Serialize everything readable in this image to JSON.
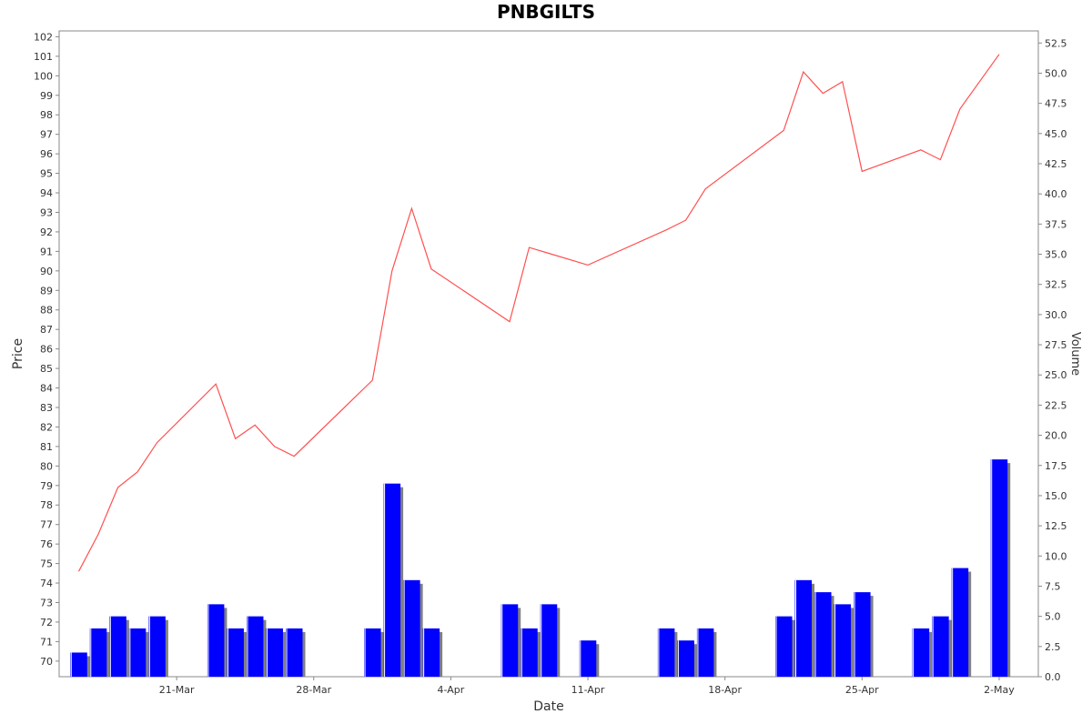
{
  "chart_data": {
    "type": "line",
    "title": "PNBGILTS",
    "xlabel": "Date",
    "ylabel": "Price",
    "y2label": "Volume",
    "x_tick_labels": [
      {
        "label": "21-Mar",
        "date": "2022-03-21"
      },
      {
        "label": "28-Mar",
        "date": "2022-03-28"
      },
      {
        "label": "4-Apr",
        "date": "2022-04-04"
      },
      {
        "label": "11-Apr",
        "date": "2022-04-11"
      },
      {
        "label": "18-Apr",
        "date": "2022-04-18"
      },
      {
        "label": "25-Apr",
        "date": "2022-04-25"
      },
      {
        "label": "2-May",
        "date": "2022-05-02"
      }
    ],
    "xlim": [
      "2022-03-15",
      "2022-05-04"
    ],
    "ylim": [
      69.2,
      102.3
    ],
    "y_ticks": [
      70,
      71,
      72,
      73,
      74,
      75,
      76,
      77,
      78,
      79,
      80,
      81,
      82,
      83,
      84,
      85,
      86,
      87,
      88,
      89,
      90,
      91,
      92,
      93,
      94,
      95,
      96,
      97,
      98,
      99,
      100,
      101,
      102
    ],
    "y2lim": [
      0,
      53.5
    ],
    "y2_ticks": [
      "0.0",
      "2.5",
      "5.0",
      "7.5",
      "10.0",
      "12.5",
      "15.0",
      "17.5",
      "20.0",
      "22.5",
      "25.0",
      "27.5",
      "30.0",
      "32.5",
      "35.0",
      "37.5",
      "40.0",
      "42.5",
      "45.0",
      "47.5",
      "50.0",
      "52.5"
    ],
    "grid": false,
    "series": [
      {
        "kind": "line",
        "color": "#ff5050",
        "points": [
          {
            "date": "2022-03-16",
            "value": 74.6
          },
          {
            "date": "2022-03-17",
            "value": 76.5
          },
          {
            "date": "2022-03-18",
            "value": 78.9
          },
          {
            "date": "2022-03-19",
            "value": 79.7
          },
          {
            "date": "2022-03-20",
            "value": 81.2
          },
          {
            "date": "2022-03-23",
            "value": 84.2
          },
          {
            "date": "2022-03-24",
            "value": 81.4
          },
          {
            "date": "2022-03-25",
            "value": 82.1
          },
          {
            "date": "2022-03-26",
            "value": 81.0
          },
          {
            "date": "2022-03-27",
            "value": 80.5
          },
          {
            "date": "2022-03-31",
            "value": 84.4
          },
          {
            "date": "2022-04-01",
            "value": 90.0
          },
          {
            "date": "2022-04-02",
            "value": 93.2
          },
          {
            "date": "2022-04-03",
            "value": 90.1
          },
          {
            "date": "2022-04-07",
            "value": 87.4
          },
          {
            "date": "2022-04-08",
            "value": 91.2
          },
          {
            "date": "2022-04-09",
            "value": 90.9
          },
          {
            "date": "2022-04-11",
            "value": 90.3
          },
          {
            "date": "2022-04-15",
            "value": 92.1
          },
          {
            "date": "2022-04-16",
            "value": 92.6
          },
          {
            "date": "2022-04-17",
            "value": 94.2
          },
          {
            "date": "2022-04-21",
            "value": 97.2
          },
          {
            "date": "2022-04-22",
            "value": 100.2
          },
          {
            "date": "2022-04-23",
            "value": 99.1
          },
          {
            "date": "2022-04-24",
            "value": 99.7
          },
          {
            "date": "2022-04-25",
            "value": 95.1
          },
          {
            "date": "2022-04-28",
            "value": 96.2
          },
          {
            "date": "2022-04-29",
            "value": 95.7
          },
          {
            "date": "2022-04-30",
            "value": 98.3
          },
          {
            "date": "2022-05-02",
            "value": 101.1
          }
        ]
      },
      {
        "kind": "bar",
        "axis": "y2",
        "color": "#0000ff",
        "points": [
          {
            "date": "2022-03-16",
            "value": 2
          },
          {
            "date": "2022-03-17",
            "value": 4
          },
          {
            "date": "2022-03-18",
            "value": 5
          },
          {
            "date": "2022-03-19",
            "value": 4
          },
          {
            "date": "2022-03-20",
            "value": 5
          },
          {
            "date": "2022-03-23",
            "value": 6
          },
          {
            "date": "2022-03-24",
            "value": 4
          },
          {
            "date": "2022-03-25",
            "value": 5
          },
          {
            "date": "2022-03-26",
            "value": 4
          },
          {
            "date": "2022-03-27",
            "value": 4
          },
          {
            "date": "2022-03-31",
            "value": 4
          },
          {
            "date": "2022-04-01",
            "value": 16
          },
          {
            "date": "2022-04-02",
            "value": 8
          },
          {
            "date": "2022-04-03",
            "value": 4
          },
          {
            "date": "2022-04-07",
            "value": 6
          },
          {
            "date": "2022-04-08",
            "value": 4
          },
          {
            "date": "2022-04-09",
            "value": 6
          },
          {
            "date": "2022-04-11",
            "value": 3
          },
          {
            "date": "2022-04-15",
            "value": 4
          },
          {
            "date": "2022-04-16",
            "value": 3
          },
          {
            "date": "2022-04-17",
            "value": 4
          },
          {
            "date": "2022-04-21",
            "value": 5
          },
          {
            "date": "2022-04-22",
            "value": 8
          },
          {
            "date": "2022-04-23",
            "value": 7
          },
          {
            "date": "2022-04-24",
            "value": 6
          },
          {
            "date": "2022-04-25",
            "value": 7
          },
          {
            "date": "2022-04-28",
            "value": 4
          },
          {
            "date": "2022-04-29",
            "value": 5
          },
          {
            "date": "2022-04-30",
            "value": 9
          },
          {
            "date": "2022-05-02",
            "value": 18
          }
        ]
      }
    ]
  }
}
